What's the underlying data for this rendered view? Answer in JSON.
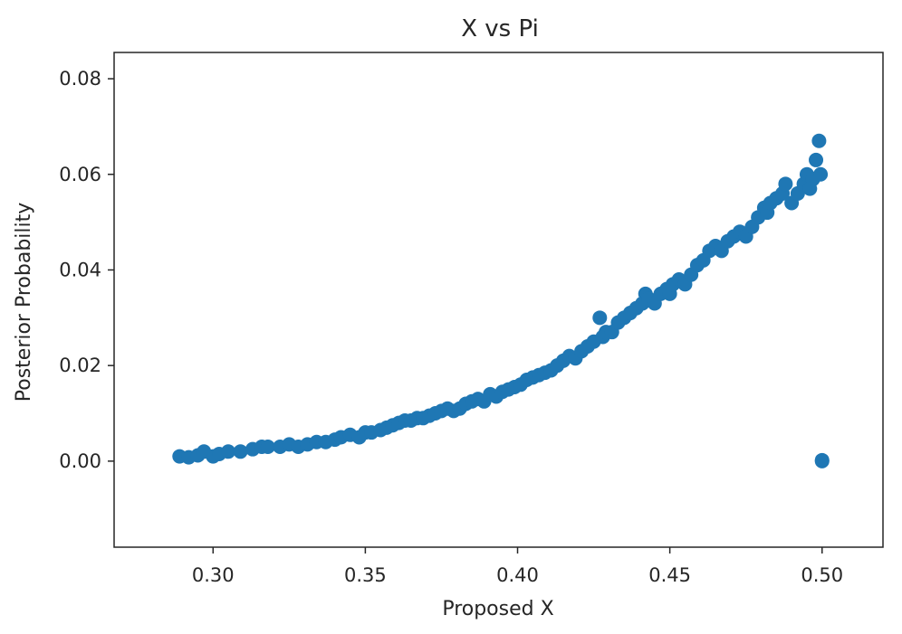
{
  "chart_data": {
    "type": "scatter",
    "title": "X vs Pi",
    "xlabel": "Proposed X",
    "ylabel": "Posterior Probability",
    "xlim": [
      0.2675,
      0.52
    ],
    "ylim": [
      -0.018,
      0.0855
    ],
    "xticks": [
      0.3,
      0.35,
      0.4,
      0.45,
      0.5
    ],
    "xtick_labels": [
      "0.30",
      "0.35",
      "0.40",
      "0.45",
      "0.50"
    ],
    "yticks": [
      0.0,
      0.02,
      0.04,
      0.06,
      0.08
    ],
    "ytick_labels": [
      "0.00",
      "0.02",
      "0.04",
      "0.06",
      "0.08"
    ],
    "grid": false,
    "marker_color": "#1f77b4",
    "series": [
      {
        "name": "samples",
        "x": [
          0.289,
          0.292,
          0.295,
          0.297,
          0.3,
          0.302,
          0.305,
          0.309,
          0.313,
          0.316,
          0.318,
          0.322,
          0.325,
          0.328,
          0.331,
          0.334,
          0.337,
          0.34,
          0.342,
          0.345,
          0.348,
          0.35,
          0.352,
          0.355,
          0.357,
          0.359,
          0.361,
          0.363,
          0.365,
          0.367,
          0.369,
          0.371,
          0.373,
          0.375,
          0.377,
          0.379,
          0.381,
          0.383,
          0.385,
          0.387,
          0.389,
          0.391,
          0.393,
          0.395,
          0.397,
          0.399,
          0.401,
          0.403,
          0.405,
          0.407,
          0.409,
          0.411,
          0.413,
          0.415,
          0.417,
          0.419,
          0.421,
          0.423,
          0.425,
          0.427,
          0.428,
          0.429,
          0.431,
          0.433,
          0.435,
          0.437,
          0.439,
          0.441,
          0.442,
          0.443,
          0.445,
          0.447,
          0.449,
          0.45,
          0.451,
          0.453,
          0.455,
          0.457,
          0.459,
          0.461,
          0.463,
          0.465,
          0.467,
          0.469,
          0.471,
          0.473,
          0.475,
          0.477,
          0.479,
          0.481,
          0.482,
          0.483,
          0.485,
          0.487,
          0.488,
          0.49,
          0.492,
          0.494,
          0.495,
          0.496,
          0.497,
          0.498,
          0.499,
          0.4995,
          0.5,
          0.5
        ],
        "y": [
          0.001,
          0.0008,
          0.0012,
          0.002,
          0.001,
          0.0015,
          0.002,
          0.002,
          0.0025,
          0.003,
          0.003,
          0.003,
          0.0035,
          0.003,
          0.0035,
          0.004,
          0.004,
          0.0045,
          0.005,
          0.0055,
          0.005,
          0.006,
          0.006,
          0.0065,
          0.007,
          0.0075,
          0.008,
          0.0085,
          0.0085,
          0.009,
          0.009,
          0.0095,
          0.01,
          0.0105,
          0.011,
          0.0105,
          0.011,
          0.012,
          0.0125,
          0.013,
          0.0125,
          0.014,
          0.0135,
          0.0145,
          0.015,
          0.0155,
          0.016,
          0.017,
          0.0175,
          0.018,
          0.0185,
          0.019,
          0.02,
          0.021,
          0.022,
          0.0215,
          0.023,
          0.024,
          0.025,
          0.03,
          0.026,
          0.027,
          0.027,
          0.029,
          0.03,
          0.031,
          0.032,
          0.033,
          0.035,
          0.034,
          0.033,
          0.035,
          0.036,
          0.035,
          0.037,
          0.038,
          0.037,
          0.039,
          0.041,
          0.042,
          0.044,
          0.045,
          0.044,
          0.046,
          0.047,
          0.048,
          0.047,
          0.049,
          0.051,
          0.053,
          0.052,
          0.054,
          0.055,
          0.056,
          0.058,
          0.054,
          0.056,
          0.058,
          0.06,
          0.057,
          0.059,
          0.063,
          0.067,
          0.06,
          0.0,
          0.0002
        ]
      }
    ]
  }
}
